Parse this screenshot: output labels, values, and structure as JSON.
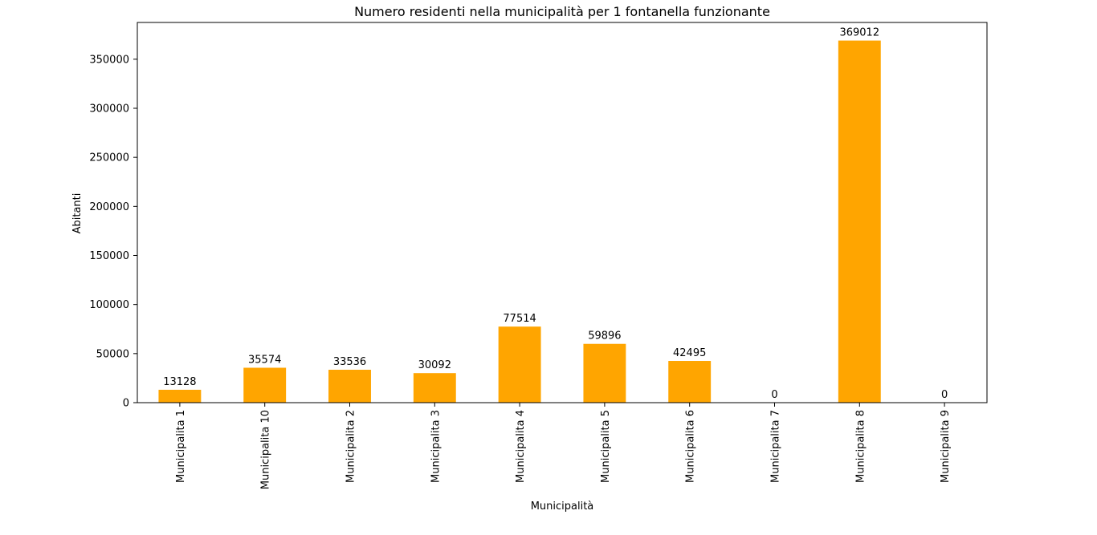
{
  "chart_data": {
    "type": "bar",
    "title": "Numero residenti nella municipalità per 1 fontanella funzionante",
    "xlabel": "Municipalità",
    "ylabel": "Abitanti",
    "categories": [
      "Municipalita 1",
      "Municipalita 10",
      "Municipalita 2",
      "Municipalita 3",
      "Municipalita 4",
      "Municipalita 5",
      "Municipalita 6",
      "Municipalita 7",
      "Municipalita 8",
      "Municipalita 9"
    ],
    "values": [
      13128,
      35574,
      33536,
      30092,
      77514,
      59896,
      42495,
      0,
      369012,
      0
    ],
    "data_labels": [
      "13128",
      "35574",
      "33536",
      "30092",
      "77514",
      "59896",
      "42495",
      "0",
      "369012",
      "0"
    ],
    "ylim": [
      0,
      387462
    ],
    "yticks": [
      0,
      50000,
      100000,
      150000,
      200000,
      250000,
      300000,
      350000
    ],
    "ytick_labels": [
      "0",
      "50000",
      "100000",
      "150000",
      "200000",
      "250000",
      "300000",
      "350000"
    ],
    "bar_color": "#ffa500",
    "grid": false,
    "legend": false
  }
}
